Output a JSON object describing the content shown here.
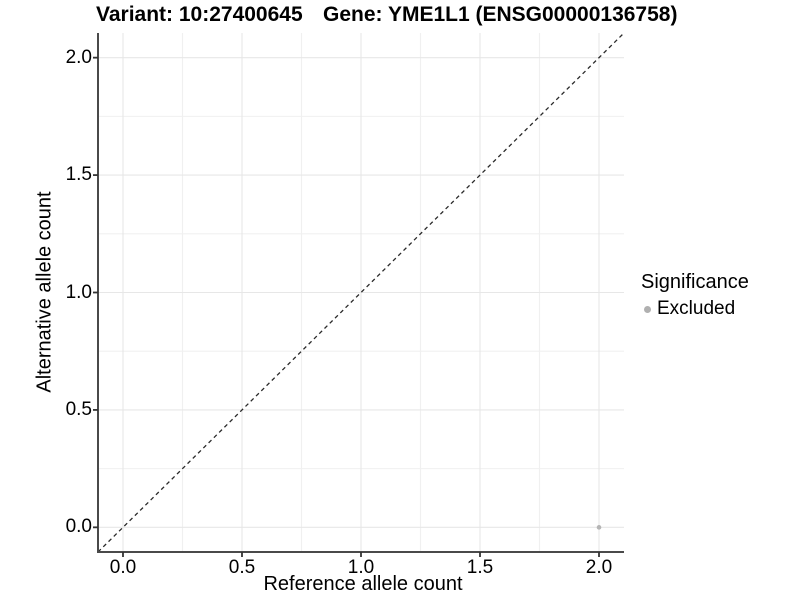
{
  "chart_data": {
    "type": "scatter",
    "titles": {
      "left": "Variant: 10:27400645",
      "right": "Gene: YME1L1 (ENSG00000136758)"
    },
    "xlabel": "Reference allele count",
    "ylabel": "Alternative allele count",
    "xlim": [
      -0.105,
      2.105
    ],
    "ylim": [
      -0.105,
      2.105
    ],
    "x_ticks": {
      "values": [
        0.0,
        0.5,
        1.0,
        1.5,
        2.0
      ],
      "labels": [
        "0.0",
        "0.5",
        "1.0",
        "1.5",
        "2.0"
      ]
    },
    "y_ticks": {
      "values": [
        0.0,
        0.5,
        1.0,
        1.5,
        2.0
      ],
      "labels": [
        "0.0",
        "0.5",
        "1.0",
        "1.5",
        "2.0"
      ]
    },
    "minor_grid": [
      0.25,
      0.75,
      1.25,
      1.75
    ],
    "grid": "on",
    "legend_position": "right",
    "identity_line": {
      "style": "dashed",
      "color": "#2a2a2a",
      "slope": 1,
      "intercept": 0
    },
    "series": [
      {
        "name": "Excluded",
        "color": "#b5b5b5",
        "points": [
          {
            "x": 2.0,
            "y": 0.0
          }
        ]
      }
    ],
    "legend": {
      "title": "Significance",
      "entries": [
        {
          "label": "Excluded",
          "color": "#b0b0b0",
          "marker": "circle"
        }
      ]
    },
    "colors": {
      "background": "#ffffff",
      "axis_line": "#4a4a4a",
      "tick_mark": "#333333",
      "grid_major": "#e7e7e7",
      "grid_minor": "#f0f0f0",
      "text": "#000000"
    }
  }
}
